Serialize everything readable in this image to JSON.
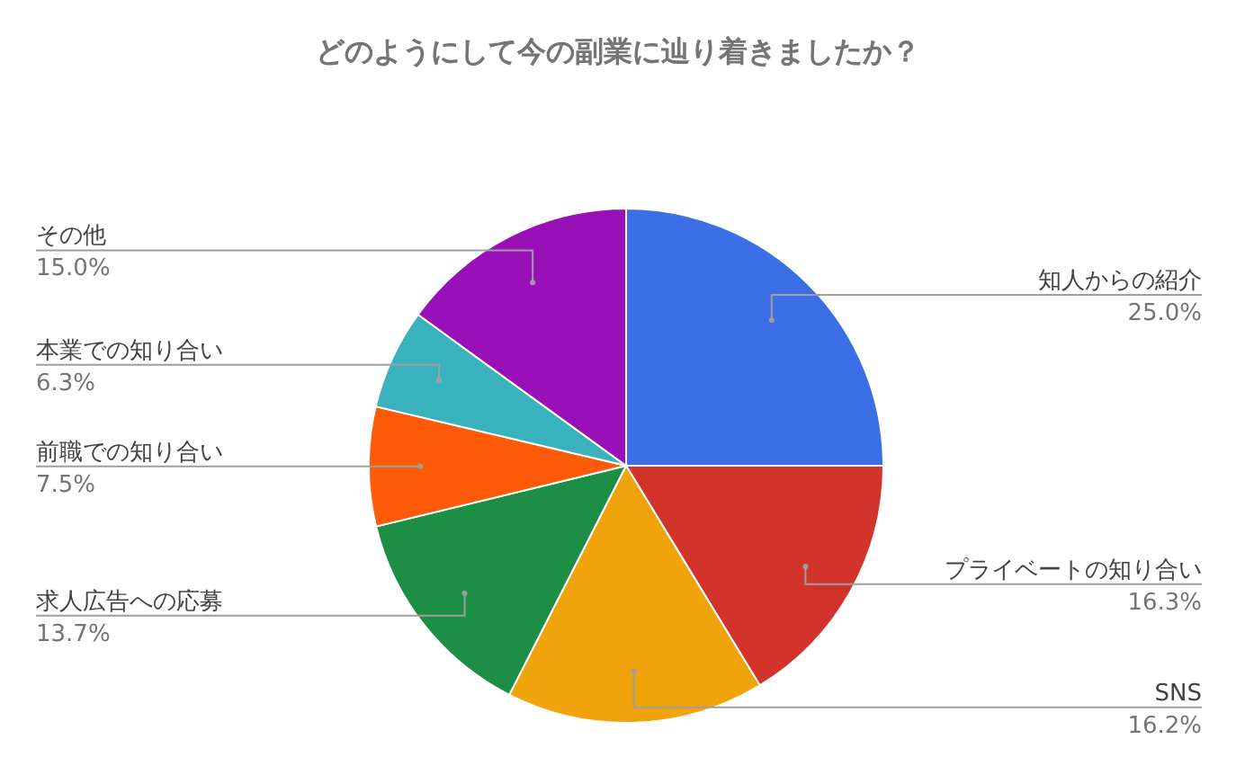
{
  "chart_data": {
    "type": "pie",
    "title": "どのようにして今の副業に辿り着きましたか？",
    "categories": [
      "知人からの紹介",
      "プライベートの知り合い",
      "SNS",
      "求人広告への応募",
      "前職での知り合い",
      "本業での知り合い",
      "その他"
    ],
    "values": [
      25.0,
      16.3,
      16.2,
      13.7,
      7.5,
      6.3,
      15.0
    ],
    "colors": [
      "#3c6fe6",
      "#d2342c",
      "#f0a30b",
      "#1c8e45",
      "#fd5b08",
      "#3ab2bd",
      "#9a10b8"
    ],
    "value_labels": [
      "25.0%",
      "16.3%",
      "16.2%",
      "13.7%",
      "7.5%",
      "6.3%",
      "15.0%"
    ]
  }
}
